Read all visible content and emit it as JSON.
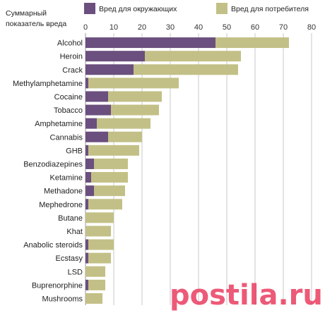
{
  "chart_data": {
    "type": "bar",
    "orientation": "horizontal",
    "stacked": true,
    "ylabel_lines": [
      "Суммарный",
      "показатель вреда"
    ],
    "xlim": [
      0,
      80
    ],
    "xticks": [
      "0",
      "10",
      "20",
      "30",
      "40",
      "50",
      "60",
      "70",
      "80"
    ],
    "grid": "vertical",
    "legend_position": "top",
    "categories": [
      "Alcohol",
      "Heroin",
      "Crack",
      "Methylamphetamine",
      "Cocaine",
      "Tobacco",
      "Amphetamine",
      "Cannabis",
      "GHB",
      "Benzodiazepines",
      "Ketamine",
      "Methadone",
      "Mephedrone",
      "Butane",
      "Khat",
      "Anabolic steroids",
      "Ecstasy",
      "LSD",
      "Buprenorphine",
      "Mushrooms"
    ],
    "series": [
      {
        "name": "Вред для окружающих",
        "color": "#6b4f7e",
        "values": [
          46,
          21,
          17,
          1,
          8,
          9,
          4,
          8,
          1,
          3,
          2,
          3,
          1,
          0,
          0,
          1,
          1,
          0,
          1,
          0
        ]
      },
      {
        "name": "Вред для потребителя",
        "color": "#c3c087",
        "values": [
          26,
          34,
          37,
          32,
          19,
          17,
          19,
          12,
          18,
          12,
          13,
          11,
          12,
          10,
          9,
          9,
          8,
          7,
          6,
          6
        ]
      }
    ]
  },
  "watermark": "postila.ru"
}
